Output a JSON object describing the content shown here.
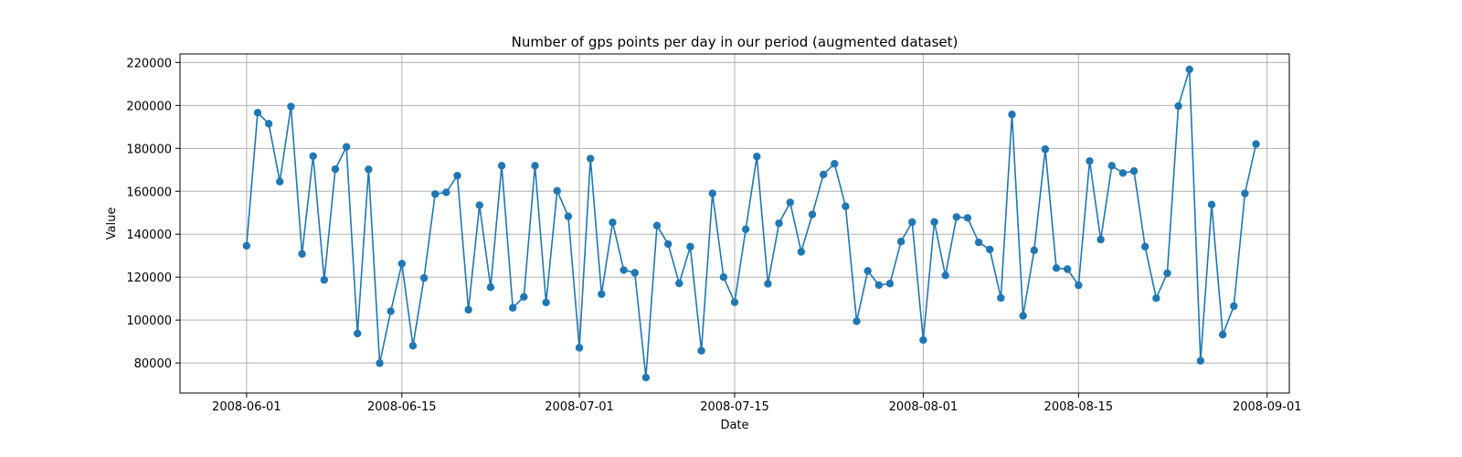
{
  "chart_data": {
    "type": "line",
    "title": "Number of gps points per day in our period (augmented dataset)",
    "xlabel": "Date",
    "ylabel": "Value",
    "grid": true,
    "markers": true,
    "color": "#1f77b4",
    "xlim": [
      "2008-05-26",
      "2008-09-03"
    ],
    "ylim": [
      66000,
      224000
    ],
    "x_ticks": [
      "2008-06-01",
      "2008-06-15",
      "2008-07-01",
      "2008-07-15",
      "2008-08-01",
      "2008-08-15",
      "2008-09-01"
    ],
    "y_ticks": [
      80000,
      100000,
      120000,
      140000,
      160000,
      180000,
      200000,
      220000
    ],
    "x": [
      "2008-06-01",
      "2008-06-02",
      "2008-06-03",
      "2008-06-04",
      "2008-06-05",
      "2008-06-06",
      "2008-06-07",
      "2008-06-08",
      "2008-06-09",
      "2008-06-10",
      "2008-06-11",
      "2008-06-12",
      "2008-06-13",
      "2008-06-14",
      "2008-06-15",
      "2008-06-16",
      "2008-06-17",
      "2008-06-18",
      "2008-06-19",
      "2008-06-20",
      "2008-06-21",
      "2008-06-22",
      "2008-06-23",
      "2008-06-24",
      "2008-06-25",
      "2008-06-26",
      "2008-06-27",
      "2008-06-28",
      "2008-06-29",
      "2008-06-30",
      "2008-07-01",
      "2008-07-02",
      "2008-07-03",
      "2008-07-04",
      "2008-07-05",
      "2008-07-06",
      "2008-07-07",
      "2008-07-08",
      "2008-07-09",
      "2008-07-10",
      "2008-07-11",
      "2008-07-12",
      "2008-07-13",
      "2008-07-14",
      "2008-07-15",
      "2008-07-16",
      "2008-07-17",
      "2008-07-18",
      "2008-07-19",
      "2008-07-20",
      "2008-07-21",
      "2008-07-22",
      "2008-07-23",
      "2008-07-24",
      "2008-07-25",
      "2008-07-26",
      "2008-07-27",
      "2008-07-28",
      "2008-07-29",
      "2008-07-30",
      "2008-07-31",
      "2008-08-01",
      "2008-08-02",
      "2008-08-03",
      "2008-08-04",
      "2008-08-05",
      "2008-08-06",
      "2008-08-07",
      "2008-08-08",
      "2008-08-09",
      "2008-08-10",
      "2008-08-11",
      "2008-08-12",
      "2008-08-13",
      "2008-08-14",
      "2008-08-15",
      "2008-08-16",
      "2008-08-17",
      "2008-08-18",
      "2008-08-19",
      "2008-08-20",
      "2008-08-21",
      "2008-08-22",
      "2008-08-23",
      "2008-08-24",
      "2008-08-25",
      "2008-08-26",
      "2008-08-27",
      "2008-08-28",
      "2008-08-29",
      "2008-08-30",
      "2008-08-31"
    ],
    "y": [
      134600,
      196600,
      191500,
      164500,
      199500,
      130800,
      176400,
      118700,
      170300,
      180700,
      93700,
      170200,
      79900,
      104100,
      126300,
      88000,
      119600,
      158700,
      159500,
      167300,
      104800,
      153500,
      115300,
      171900,
      105700,
      110800,
      171900,
      108200,
      160200,
      148300,
      87100,
      175200,
      112100,
      145500,
      123300,
      122000,
      73200,
      144000,
      135400,
      117100,
      134200,
      85700,
      159000,
      120000,
      108300,
      142300,
      176200,
      116900,
      145100,
      154800,
      131800,
      149200,
      167800,
      172800,
      153000,
      99400,
      122900,
      116300,
      117000,
      136600,
      145600,
      90700,
      145700,
      120800,
      148000,
      147600,
      136200,
      132900,
      110300,
      195800,
      102000,
      132500,
      179600,
      124200,
      123700,
      116200,
      174100,
      137500,
      171900,
      168500,
      169400,
      134200,
      110200,
      121800,
      199700,
      216800,
      81000,
      153800,
      93200,
      106500,
      159000,
      182000
    ]
  }
}
